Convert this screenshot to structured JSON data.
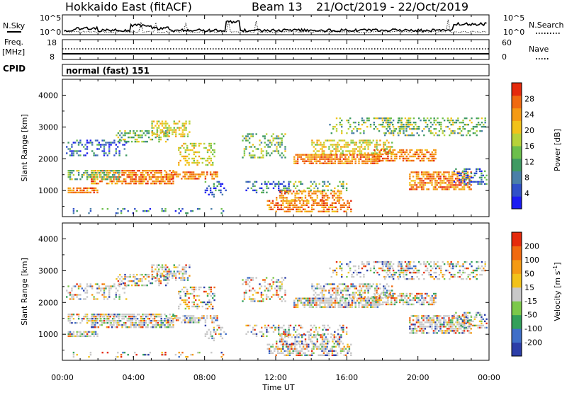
{
  "header": {
    "radar_title": "Hokkaido East (fitACF)",
    "beam": "Beam 13",
    "dates": "21/Oct/2019 - 22/Oct/2019"
  },
  "noise_panel": {
    "left_label": "N.Sky",
    "right_label": "N.Search",
    "left_ticks": [
      "10^5",
      "10^0"
    ],
    "right_ticks": [
      "10^5",
      "10^0"
    ]
  },
  "freq_panel": {
    "left_label_1": "Freq.",
    "left_label_2": "[MHz]",
    "right_label": "Nave",
    "left_ticks": [
      "18",
      "8"
    ],
    "right_ticks": [
      "60",
      "0"
    ]
  },
  "cpid_panel": {
    "label": "CPID",
    "program": "normal (fast) 151"
  },
  "x_axis": {
    "label": "Time UT",
    "ticks": [
      "00:00",
      "04:00",
      "08:00",
      "12:00",
      "16:00",
      "20:00",
      "00:00"
    ]
  },
  "chart_data": [
    {
      "type": "heatmap",
      "name": "power",
      "ylabel": "Slant Range [km]",
      "yticks": [
        1000,
        2000,
        3000,
        4000
      ],
      "ylim": [
        180,
        4500
      ],
      "xlim_hours": [
        0,
        24
      ],
      "colorbar": {
        "label": "Power [dB]",
        "ticks": [
          "4",
          "8",
          "12",
          "16",
          "20",
          "24",
          "28"
        ],
        "range": [
          0,
          32
        ],
        "colors": [
          "#1b1bf2",
          "#3050c8",
          "#4a7fa8",
          "#3f9a63",
          "#6cbf4c",
          "#b7d23a",
          "#f2c21a",
          "#f59a14",
          "#f06a10",
          "#e52a0c"
        ]
      }
    },
    {
      "type": "heatmap",
      "name": "velocity",
      "ylabel": "Slant Range [km]",
      "yticks": [
        1000,
        2000,
        3000,
        4000
      ],
      "ylim": [
        180,
        4500
      ],
      "xlim_hours": [
        0,
        24
      ],
      "colorbar": {
        "label": "Velocity [m s",
        "label_sup": "-1",
        "label_end": "]",
        "ticks": [
          "200",
          "100",
          "50",
          "15",
          "-15",
          "-50",
          "-100",
          "-200"
        ],
        "colors": [
          "#2c3ea8",
          "#3f6fc8",
          "#33a05a",
          "#7cc84a",
          "#c8c8c8",
          "#f2c21a",
          "#f59a14",
          "#f06a10",
          "#e52a0c"
        ]
      }
    }
  ]
}
